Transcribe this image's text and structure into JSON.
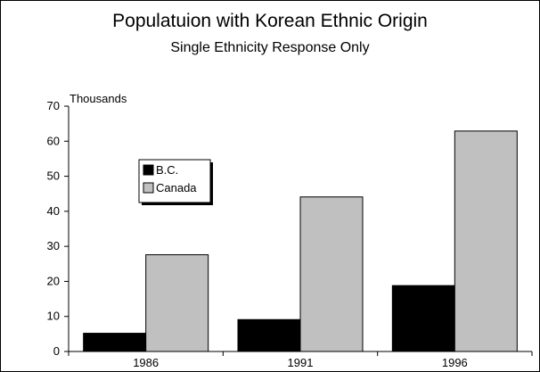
{
  "chart_data": {
    "type": "bar",
    "title": "Populatuion with Korean Ethnic Origin",
    "subtitle": "Single Ethnicity Response Only",
    "ylabel": "Thousands",
    "xlabel": "",
    "categories": [
      "1986",
      "1991",
      "1996"
    ],
    "series": [
      {
        "name": "B.C.",
        "values": [
          5.2,
          9.1,
          18.8
        ],
        "color": "#000000"
      },
      {
        "name": "Canada",
        "values": [
          27.6,
          44.1,
          62.9
        ],
        "color": "#c0c0c0"
      }
    ],
    "ylim": [
      0,
      70
    ],
    "yticks": [
      0,
      10,
      20,
      30,
      40,
      50,
      60,
      70
    ],
    "grid": false,
    "legend": "upper-left inside plot"
  }
}
